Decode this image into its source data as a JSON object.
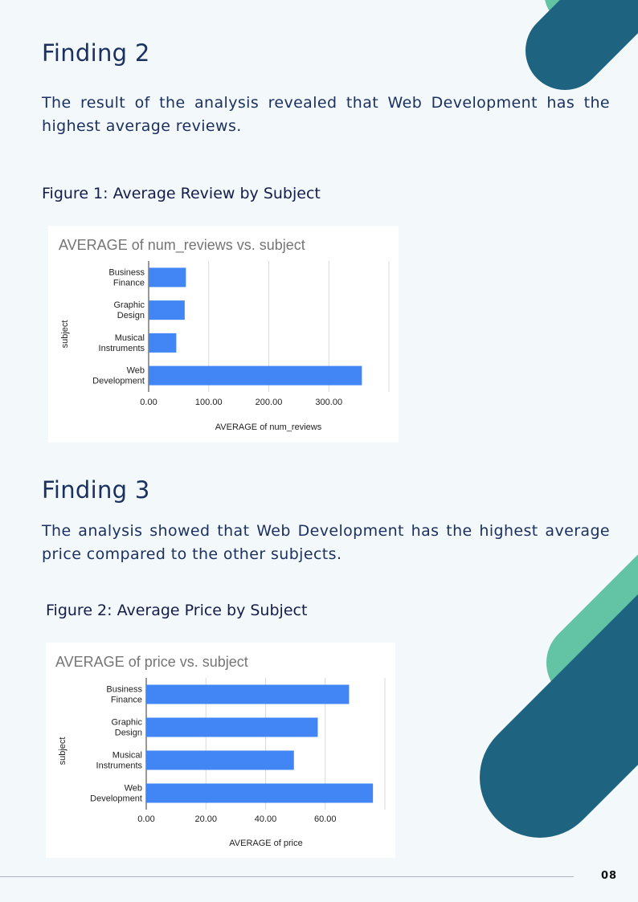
{
  "finding2": {
    "heading": "Finding 2",
    "text": "The result of the analysis revealed that Web Development has the highest average reviews.",
    "figure_caption": "Figure 1: Average Review by Subject"
  },
  "finding3": {
    "heading": "Finding 3",
    "text": "The analysis showed that Web Development has the highest average price compared to the other subjects.",
    "figure_caption": "Figure 2: Average Price by Subject"
  },
  "page_number": "08",
  "colors": {
    "bar": "#4285f4",
    "teal": "#1e6480",
    "mint": "#63c3a5"
  },
  "chart_data": [
    {
      "type": "bar",
      "orientation": "horizontal",
      "title": "AVERAGE of num_reviews vs. subject",
      "xlabel": "AVERAGE of num_reviews",
      "ylabel": "subject",
      "categories": [
        [
          "Business",
          "Finance"
        ],
        [
          "Graphic",
          "Design"
        ],
        [
          "Musical",
          "Instruments"
        ],
        [
          "Web",
          "Development"
        ]
      ],
      "values": [
        62,
        60,
        46,
        355
      ],
      "xlim": [
        0,
        400
      ],
      "ticks": [
        "0.00",
        "100.00",
        "200.00",
        "300.00"
      ],
      "grid": true
    },
    {
      "type": "bar",
      "orientation": "horizontal",
      "title": "AVERAGE of price vs. subject",
      "xlabel": "AVERAGE of price",
      "ylabel": "subject",
      "categories": [
        [
          "Business",
          "Finance"
        ],
        [
          "Graphic",
          "Design"
        ],
        [
          "Musical",
          "Instruments"
        ],
        [
          "Web",
          "Development"
        ]
      ],
      "values": [
        68,
        57.5,
        49.5,
        76
      ],
      "xlim": [
        0,
        80
      ],
      "ticks": [
        "0.00",
        "20.00",
        "40.00",
        "60.00"
      ],
      "grid": true
    }
  ]
}
